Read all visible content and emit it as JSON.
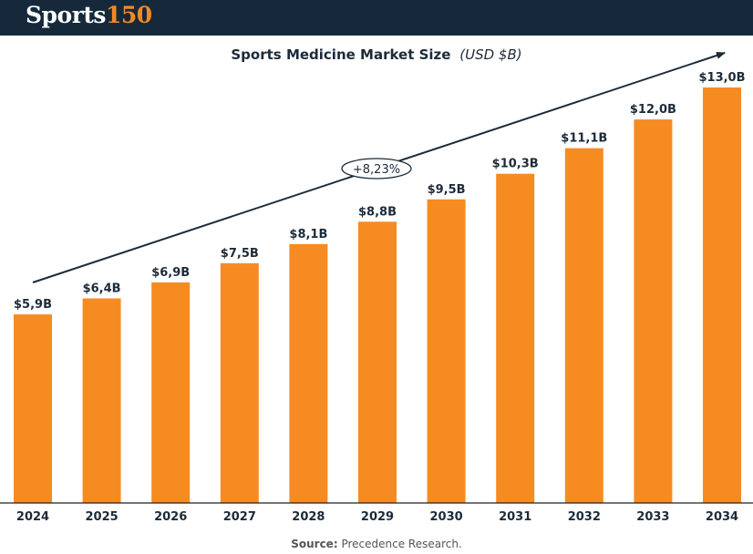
{
  "logo": {
    "part1": "Sports",
    "part2": "150"
  },
  "source": {
    "label": "Source:",
    "text": "Precedence Research."
  },
  "colors": {
    "header_bg": "#15293a",
    "bar": "#f68b22",
    "text": "#1c2b3a",
    "accent": "#f0892a"
  },
  "chart_data": {
    "type": "bar",
    "title": "Sports Medicine Market Size",
    "title_unit": "(USD $B)",
    "categories": [
      "2024",
      "2025",
      "2026",
      "2027",
      "2028",
      "2029",
      "2030",
      "2031",
      "2032",
      "2033",
      "2034"
    ],
    "values": [
      5.9,
      6.4,
      6.9,
      7.5,
      8.1,
      8.8,
      9.5,
      10.3,
      11.1,
      12.0,
      13.0
    ],
    "data_labels": [
      "$5,9B",
      "$6,4B",
      "$6,9B",
      "$7,5B",
      "$8,1B",
      "$8,8B",
      "$9,5B",
      "$10,3B",
      "$11,1B",
      "$12,0B",
      "$13,0B"
    ],
    "ylim": [
      0,
      13.0
    ],
    "grid": false,
    "legend": "none",
    "annotation": {
      "text": "+8,23%",
      "type": "trend-arrow"
    }
  }
}
